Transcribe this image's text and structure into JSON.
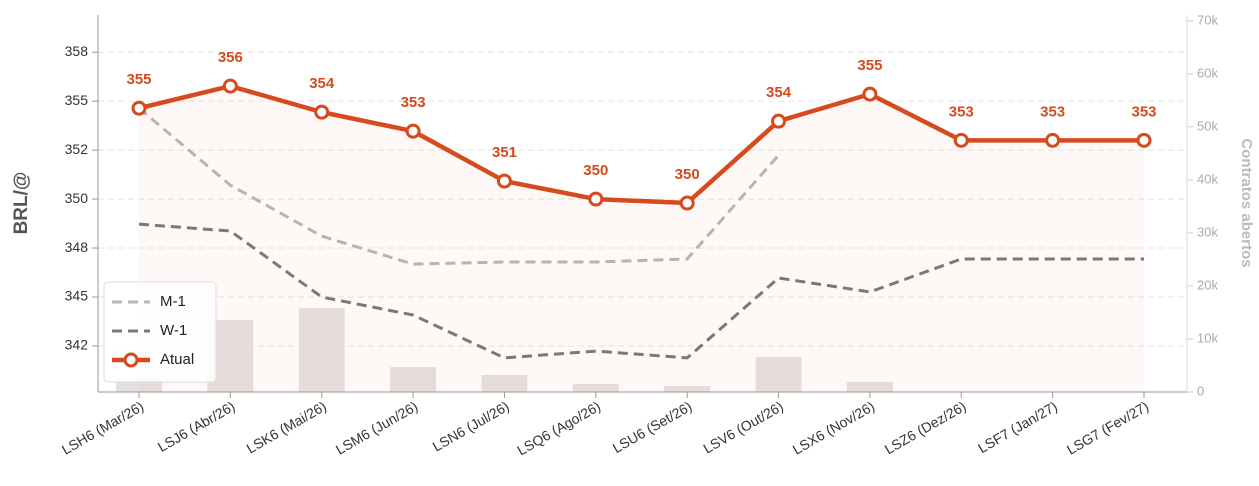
{
  "chart_data": {
    "type": "line",
    "ylabel": "BRL/@",
    "y2label": "Contratos abertos",
    "categories": [
      "LSH6 (Mar/26)",
      "LSJ6 (Abr/26)",
      "LSK6 (Mai/26)",
      "LSM6 (Jun/26)",
      "LSN6 (Jul/26)",
      "LSQ6 (Ago/26)",
      "LSU6 (Set/26)",
      "LSV6 (Out/26)",
      "LSX6 (Nov/26)",
      "LSZ6 (Dez/26)",
      "LSF7 (Jan/27)",
      "LSG7 (Fev/27)"
    ],
    "series": [
      {
        "name": "M-1",
        "color": "#b8b8b8",
        "dash": true,
        "values": [
          354.64,
          350.71,
          348.11,
          346.68,
          346.79,
          346.79,
          346.94,
          352.24,
          null,
          null,
          null,
          null
        ]
      },
      {
        "name": "W-1",
        "color": "#7a7a7a",
        "dash": true,
        "values": [
          348.72,
          348.37,
          345.0,
          344.08,
          341.89,
          342.24,
          341.89,
          345.97,
          345.26,
          346.94,
          346.94,
          346.94
        ]
      },
      {
        "name": "Atual",
        "color": "#d64a1e",
        "markers": true,
        "values": [
          354.64,
          355.77,
          354.44,
          353.47,
          350.92,
          350.0,
          349.8,
          353.98,
          355.36,
          353.0,
          353.0,
          353.0
        ],
        "value_labels": [
          "355",
          "356",
          "354",
          "353",
          "351",
          "350",
          "350",
          "354",
          "355",
          "353",
          "353",
          "353"
        ]
      }
    ],
    "bars": {
      "color": "#e6e1e1",
      "axis": "y2",
      "values": [
        2600,
        13600,
        15800,
        4700,
        3200,
        1500,
        1100,
        6600,
        1900,
        0,
        0,
        0
      ]
    },
    "ylim": [
      340.15,
      359.4
    ],
    "yticks": [
      {
        "value": 342.5,
        "label": "342"
      },
      345,
      {
        "value": 347.5,
        "label": "348"
      },
      350,
      {
        "value": 352.5,
        "label": "352"
      },
      355,
      {
        "value": 357.5,
        "label": "358"
      }
    ],
    "y2lim": [
      0,
      71100
    ],
    "y2ticks": [
      0,
      {
        "value": 10000,
        "label": "10k"
      },
      {
        "value": 20000,
        "label": "20k"
      },
      {
        "value": 30000,
        "label": "30k"
      },
      {
        "value": 40000,
        "label": "40k"
      },
      {
        "value": 50000,
        "label": "50k"
      },
      {
        "value": 60000,
        "label": "60k"
      },
      {
        "value": 70000,
        "label": "70k"
      }
    ],
    "grid": true,
    "legend": "lower left"
  }
}
